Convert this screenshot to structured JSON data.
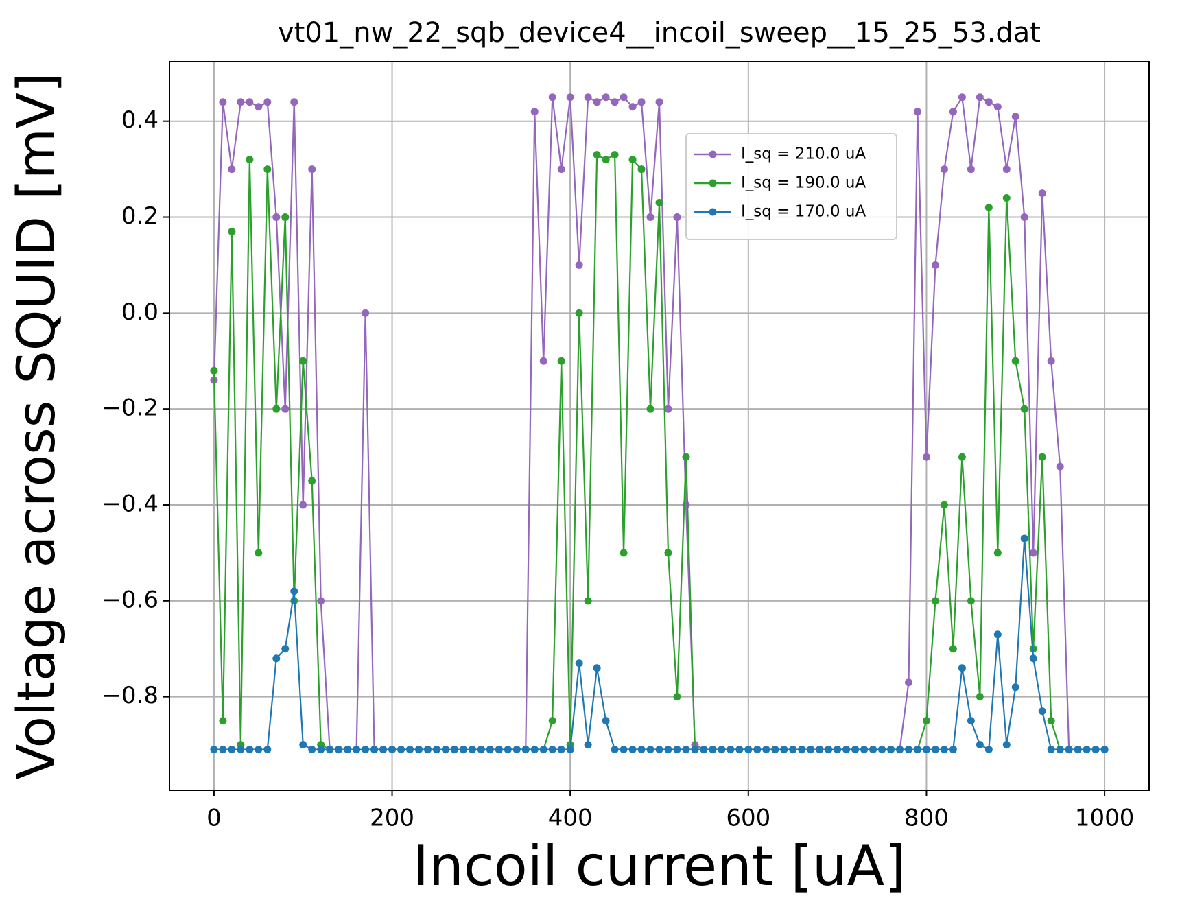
{
  "chart_data": {
    "type": "line",
    "title": "vt01_nw_22_sqb_device4__incoil_sweep__15_25_53.dat",
    "x_label": "Incoil current [uA]",
    "y_label": "Voltage across SQUID [mV]",
    "x": [
      0,
      10,
      20,
      30,
      40,
      50,
      60,
      70,
      80,
      90,
      100,
      110,
      120,
      130,
      140,
      150,
      160,
      170,
      180,
      190,
      200,
      210,
      220,
      230,
      240,
      250,
      260,
      270,
      280,
      290,
      300,
      310,
      320,
      330,
      340,
      350,
      360,
      370,
      380,
      390,
      400,
      410,
      420,
      430,
      440,
      450,
      460,
      470,
      480,
      490,
      500,
      510,
      520,
      530,
      540,
      550,
      560,
      570,
      580,
      590,
      600,
      610,
      620,
      630,
      640,
      650,
      660,
      670,
      680,
      690,
      700,
      710,
      720,
      730,
      740,
      750,
      760,
      770,
      780,
      790,
      800,
      810,
      820,
      830,
      840,
      850,
      860,
      870,
      880,
      890,
      900,
      910,
      920,
      930,
      940,
      950,
      960,
      970,
      980,
      990,
      1000
    ],
    "series": [
      {
        "name": "I_sq = 210.0 uA",
        "color": "#9467bd",
        "values": [
          -0.14,
          0.44,
          0.3,
          0.44,
          0.44,
          0.43,
          0.44,
          0.2,
          -0.2,
          0.44,
          -0.4,
          0.3,
          -0.6,
          -0.91,
          -0.91,
          -0.91,
          -0.91,
          0.0,
          -0.91,
          -0.91,
          -0.91,
          -0.91,
          -0.91,
          -0.91,
          -0.91,
          -0.91,
          -0.91,
          -0.91,
          -0.91,
          -0.91,
          -0.91,
          -0.91,
          -0.91,
          -0.91,
          -0.91,
          -0.91,
          0.42,
          -0.1,
          0.45,
          0.3,
          0.45,
          0.1,
          0.45,
          0.44,
          0.45,
          0.44,
          0.45,
          0.43,
          0.44,
          0.2,
          0.44,
          -0.2,
          0.2,
          -0.4,
          -0.9,
          -0.91,
          -0.91,
          -0.91,
          -0.91,
          -0.91,
          -0.91,
          -0.91,
          -0.91,
          -0.91,
          -0.91,
          -0.91,
          -0.91,
          -0.91,
          -0.91,
          -0.91,
          -0.91,
          -0.91,
          -0.91,
          -0.91,
          -0.91,
          -0.91,
          -0.91,
          -0.91,
          -0.77,
          0.42,
          -0.3,
          0.1,
          0.3,
          0.42,
          0.45,
          0.3,
          0.45,
          0.44,
          0.43,
          0.3,
          0.41,
          0.2,
          -0.5,
          0.25,
          -0.1,
          -0.32,
          -0.91,
          -0.91,
          -0.91,
          -0.91,
          -0.91
        ]
      },
      {
        "name": "I_sq = 190.0 uA",
        "color": "#2ca02c",
        "values": [
          -0.12,
          -0.85,
          0.17,
          -0.9,
          0.32,
          -0.5,
          0.3,
          -0.2,
          0.2,
          -0.6,
          -0.1,
          -0.35,
          -0.9,
          -0.91,
          -0.91,
          -0.91,
          -0.91,
          -0.91,
          -0.91,
          -0.91,
          -0.91,
          -0.91,
          -0.91,
          -0.91,
          -0.91,
          -0.91,
          -0.91,
          -0.91,
          -0.91,
          -0.91,
          -0.91,
          -0.91,
          -0.91,
          -0.91,
          -0.91,
          -0.91,
          -0.91,
          -0.91,
          -0.85,
          -0.1,
          -0.9,
          0.0,
          -0.6,
          0.33,
          0.32,
          0.33,
          -0.5,
          0.32,
          0.3,
          -0.2,
          0.23,
          -0.5,
          -0.8,
          -0.3,
          -0.91,
          -0.91,
          -0.91,
          -0.91,
          -0.91,
          -0.91,
          -0.91,
          -0.91,
          -0.91,
          -0.91,
          -0.91,
          -0.91,
          -0.91,
          -0.91,
          -0.91,
          -0.91,
          -0.91,
          -0.91,
          -0.91,
          -0.91,
          -0.91,
          -0.91,
          -0.91,
          -0.91,
          -0.91,
          -0.91,
          -0.85,
          -0.6,
          -0.4,
          -0.7,
          -0.3,
          -0.6,
          -0.8,
          0.22,
          -0.5,
          0.24,
          -0.1,
          -0.2,
          -0.7,
          -0.3,
          -0.85,
          -0.91,
          -0.91,
          -0.91,
          -0.91,
          -0.91,
          -0.91
        ]
      },
      {
        "name": "I_sq = 170.0 uA",
        "color": "#1f77b4",
        "values": [
          -0.91,
          -0.91,
          -0.91,
          -0.91,
          -0.91,
          -0.91,
          -0.91,
          -0.72,
          -0.7,
          -0.58,
          -0.9,
          -0.91,
          -0.91,
          -0.91,
          -0.91,
          -0.91,
          -0.91,
          -0.91,
          -0.91,
          -0.91,
          -0.91,
          -0.91,
          -0.91,
          -0.91,
          -0.91,
          -0.91,
          -0.91,
          -0.91,
          -0.91,
          -0.91,
          -0.91,
          -0.91,
          -0.91,
          -0.91,
          -0.91,
          -0.91,
          -0.91,
          -0.91,
          -0.91,
          -0.91,
          -0.91,
          -0.73,
          -0.9,
          -0.74,
          -0.85,
          -0.91,
          -0.91,
          -0.91,
          -0.91,
          -0.91,
          -0.91,
          -0.91,
          -0.91,
          -0.91,
          -0.91,
          -0.91,
          -0.91,
          -0.91,
          -0.91,
          -0.91,
          -0.91,
          -0.91,
          -0.91,
          -0.91,
          -0.91,
          -0.91,
          -0.91,
          -0.91,
          -0.91,
          -0.91,
          -0.91,
          -0.91,
          -0.91,
          -0.91,
          -0.91,
          -0.91,
          -0.91,
          -0.91,
          -0.91,
          -0.91,
          -0.91,
          -0.91,
          -0.91,
          -0.91,
          -0.74,
          -0.85,
          -0.9,
          -0.91,
          -0.67,
          -0.9,
          -0.78,
          -0.47,
          -0.72,
          -0.83,
          -0.91,
          -0.91,
          -0.91,
          -0.91,
          -0.91,
          -0.91,
          -0.91
        ]
      }
    ],
    "xlim": [
      -50,
      1050
    ],
    "ylim": [
      -0.995,
      0.524
    ],
    "xticks": [
      0,
      200,
      400,
      600,
      800,
      1000
    ],
    "yticks": [
      {
        "value": -0.8,
        "label": "−0.8"
      },
      {
        "value": -0.6,
        "label": "−0.6"
      },
      {
        "value": -0.4,
        "label": "−0.4"
      },
      {
        "value": -0.2,
        "label": "−0.2"
      },
      {
        "value": 0,
        "label": "0.0"
      },
      0.2,
      0.4
    ],
    "grid": true,
    "legend": "upper center"
  }
}
